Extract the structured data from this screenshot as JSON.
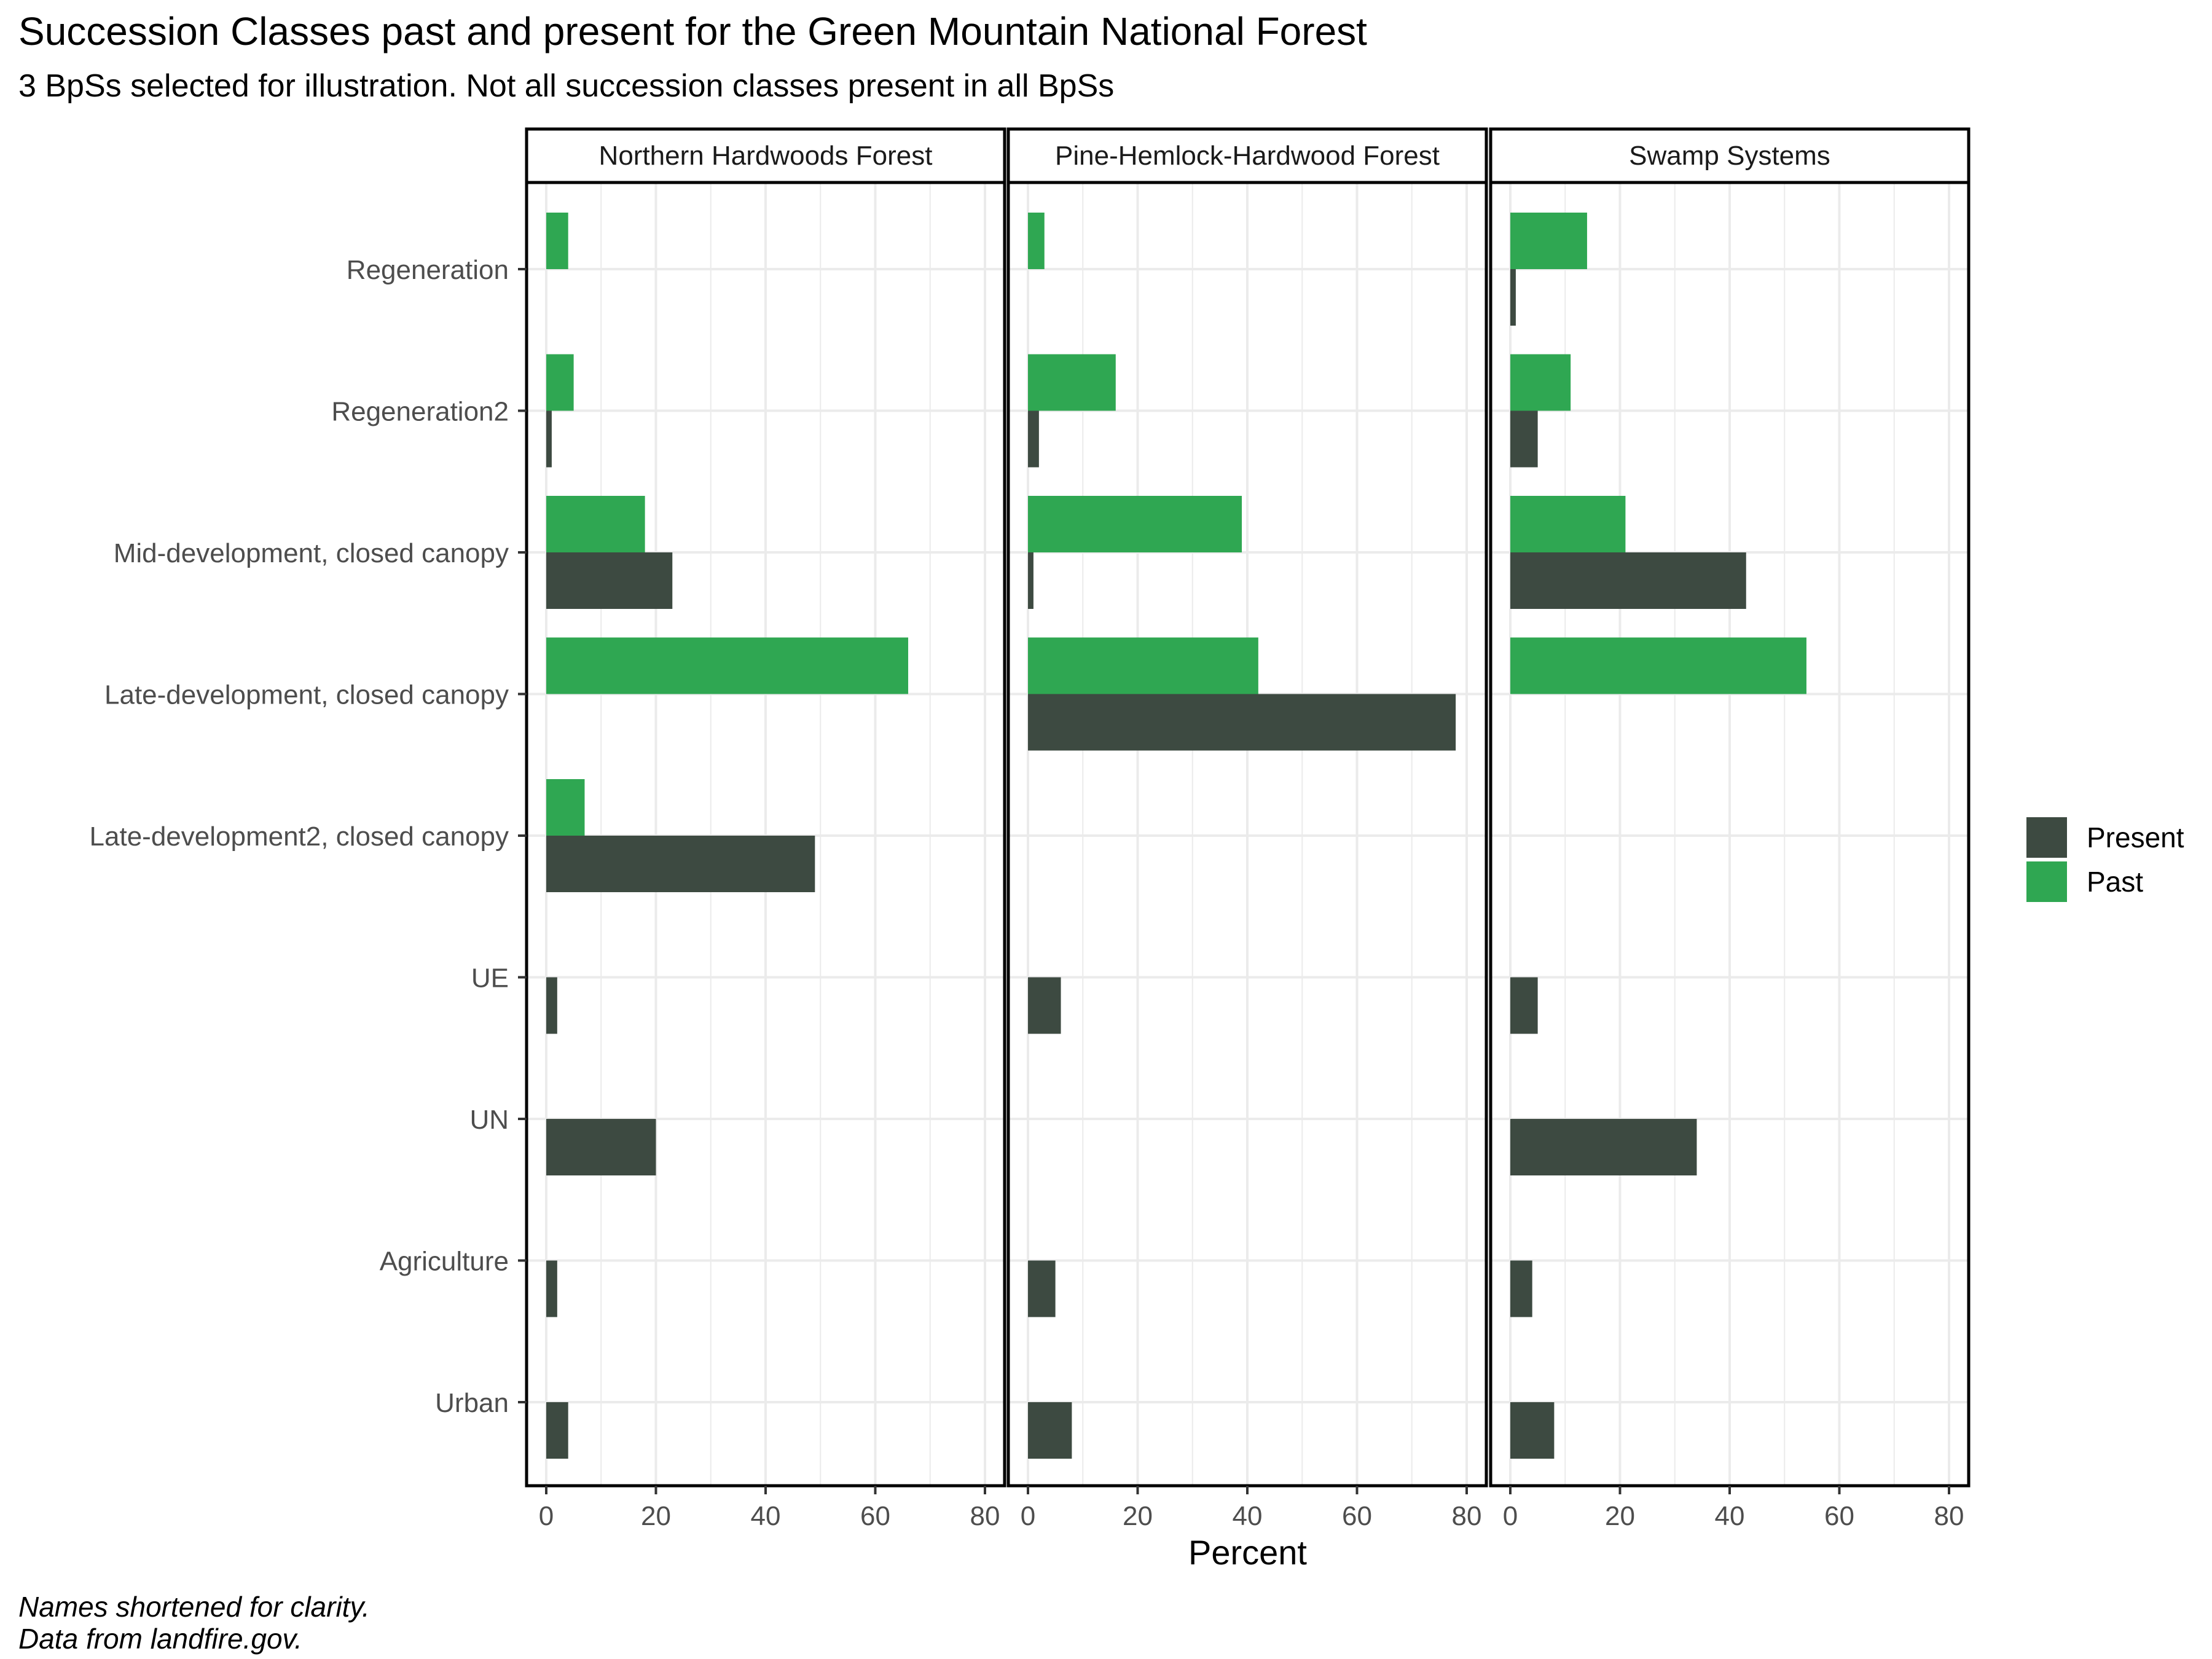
{
  "chart_data": {
    "type": "bar",
    "orientation": "horizontal",
    "title": "Succession Classes past and present for the Green Mountain National Forest",
    "subtitle": "3 BpSs selected for illustration. Not all succession classes present in all BpSs",
    "xlabel": "Percent",
    "ylabel": "",
    "xlim": [
      0,
      80
    ],
    "x_ticks": [
      0,
      20,
      40,
      60,
      80
    ],
    "grid": true,
    "legend_position": "right",
    "categories": [
      "Regeneration",
      "Regeneration2",
      "Mid-development, closed canopy",
      "Late-development, closed canopy",
      "Late-development2, closed canopy",
      "UE",
      "UN",
      "Agriculture",
      "Urban"
    ],
    "series_meta": [
      {
        "key": "present",
        "name": "Present",
        "color": "#3d4a41"
      },
      {
        "key": "past",
        "name": "Past",
        "color": "#2fa752"
      }
    ],
    "facets": [
      {
        "name": "Northern Hardwoods Forest",
        "present": [
          0,
          1,
          23,
          0,
          49,
          2,
          20,
          2,
          4
        ],
        "past": [
          4,
          5,
          18,
          66,
          7,
          0,
          0,
          0,
          0
        ]
      },
      {
        "name": "Pine-Hemlock-Hardwood Forest",
        "present": [
          0,
          2,
          1,
          78,
          0,
          6,
          0,
          5,
          8
        ],
        "past": [
          3,
          16,
          39,
          42,
          0,
          0,
          0,
          0,
          0
        ]
      },
      {
        "name": "Swamp Systems",
        "present": [
          1,
          5,
          43,
          0,
          0,
          5,
          34,
          4,
          8
        ],
        "past": [
          14,
          11,
          21,
          54,
          0,
          0,
          0,
          0,
          0
        ]
      }
    ]
  },
  "caption": {
    "line1": "Names shortened for clarity.",
    "line2": "Data from landfire.gov."
  },
  "colors": {
    "present": "#3d4a41",
    "past": "#2fa752",
    "grid": "#ebebeb"
  }
}
